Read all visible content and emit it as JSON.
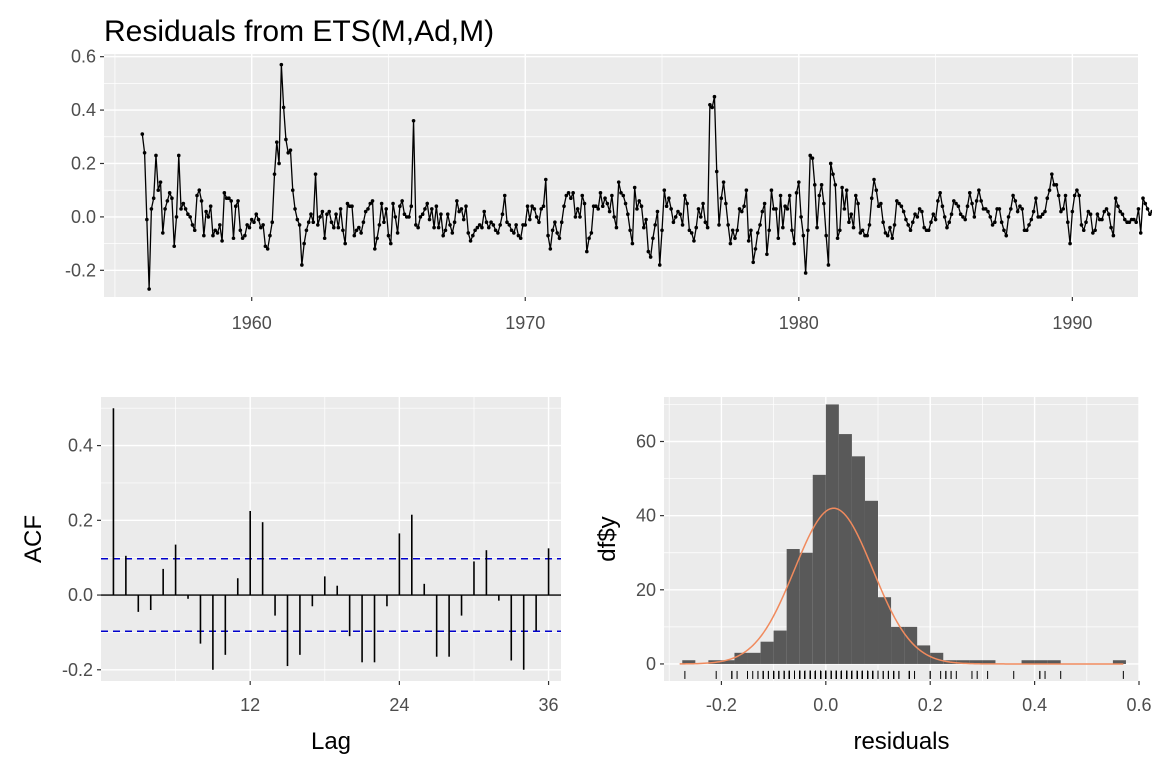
{
  "title": "Residuals from ETS(M,Ad,M)",
  "colors": {
    "panel": "#ebebeb",
    "grid_major": "#ffffff",
    "line": "#000000",
    "ci": "#0000cc",
    "bar": "#595959",
    "density": "#f08a5d"
  },
  "chart_data": [
    {
      "type": "line",
      "name": "residuals-time-series",
      "title": "Residuals from ETS(M,Ad,M)",
      "xlim": [
        1954.6,
        1992.4
      ],
      "ylim": [
        -0.3,
        0.61
      ],
      "xticks": [
        1960,
        1970,
        1980,
        1990
      ],
      "yticks": [
        -0.2,
        0.0,
        0.2,
        0.4,
        0.6
      ],
      "ytick_labels": [
        "-0.2",
        "0.0",
        "0.2",
        "0.4",
        "0.6"
      ],
      "start": 1956.0,
      "frequency": 12,
      "values": [
        0.31,
        0.24,
        -0.01,
        -0.27,
        0.03,
        0.07,
        0.23,
        0.1,
        0.13,
        -0.06,
        0.03,
        0.06,
        0.09,
        0.07,
        -0.11,
        0.0,
        0.23,
        0.03,
        0.05,
        0.03,
        0.01,
        0.0,
        -0.03,
        -0.05,
        0.08,
        0.1,
        0.06,
        -0.07,
        0.02,
        0.0,
        0.04,
        -0.07,
        -0.05,
        -0.06,
        -0.03,
        -0.09,
        0.09,
        0.07,
        0.07,
        0.06,
        -0.08,
        0.04,
        0.06,
        -0.05,
        -0.08,
        -0.07,
        -0.03,
        -0.04,
        -0.01,
        -0.02,
        0.01,
        -0.01,
        -0.04,
        -0.03,
        -0.11,
        -0.12,
        -0.07,
        -0.02,
        0.16,
        0.28,
        0.2,
        0.57,
        0.41,
        0.29,
        0.24,
        0.25,
        0.1,
        0.03,
        -0.01,
        -0.03,
        -0.18,
        -0.1,
        -0.05,
        -0.02,
        0.01,
        -0.02,
        0.16,
        -0.03,
        0.0,
        0.02,
        -0.08,
        0.01,
        0.02,
        -0.02,
        -0.04,
        0.01,
        -0.04,
        0.03,
        -0.05,
        -0.1,
        0.05,
        0.04,
        0.04,
        -0.07,
        -0.05,
        -0.04,
        -0.06,
        -0.02,
        0.02,
        0.03,
        0.05,
        0.06,
        -0.12,
        -0.08,
        -0.03,
        0.05,
        -0.02,
        0.03,
        -0.07,
        -0.1,
        0.05,
        0.0,
        -0.06,
        0.04,
        0.06,
        0.01,
        0.0,
        0.0,
        0.04,
        0.36,
        -0.03,
        -0.04,
        0.0,
        0.01,
        0.03,
        0.05,
        -0.01,
        0.03,
        -0.04,
        0.04,
        -0.04,
        0.01,
        -0.07,
        -0.05,
        0.01,
        -0.03,
        -0.06,
        -0.02,
        0.06,
        0.02,
        0.03,
        -0.01,
        0.04,
        -0.06,
        -0.09,
        -0.07,
        -0.05,
        -0.04,
        -0.03,
        -0.04,
        0.02,
        -0.02,
        -0.04,
        -0.02,
        -0.03,
        -0.05,
        -0.06,
        -0.03,
        0.01,
        0.08,
        -0.02,
        -0.03,
        -0.05,
        -0.06,
        -0.03,
        -0.07,
        -0.08,
        -0.03,
        -0.03,
        0.04,
        -0.01,
        0.04,
        0.03,
        0.0,
        -0.02,
        0.03,
        0.04,
        0.14,
        -0.07,
        -0.12,
        -0.05,
        -0.02,
        -0.06,
        -0.08,
        -0.02,
        0.04,
        0.08,
        0.09,
        0.07,
        0.09,
        0.0,
        0.03,
        0.0,
        0.08,
        0.05,
        -0.13,
        -0.08,
        -0.06,
        0.04,
        0.04,
        0.03,
        0.09,
        0.04,
        0.07,
        0.05,
        0.02,
        0.08,
        0.0,
        -0.04,
        0.13,
        0.09,
        0.08,
        0.05,
        0.01,
        -0.05,
        -0.1,
        0.11,
        0.03,
        0.06,
        0.04,
        -0.04,
        -0.01,
        -0.13,
        -0.15,
        -0.08,
        -0.03,
        0.02,
        -0.18,
        -0.05,
        0.1,
        0.04,
        0.07,
        0.03,
        -0.02,
        0.0,
        0.02,
        0.01,
        -0.03,
        0.08,
        0.05,
        -0.05,
        -0.06,
        -0.09,
        -0.04,
        0.03,
        0.0,
        0.05,
        -0.02,
        -0.04,
        0.42,
        0.41,
        0.45,
        0.17,
        -0.03,
        0.07,
        0.13,
        0.05,
        -0.03,
        -0.1,
        -0.05,
        -0.08,
        -0.05,
        0.03,
        0.02,
        0.04,
        0.1,
        -0.09,
        -0.05,
        -0.17,
        -0.12,
        -0.06,
        -0.03,
        0.02,
        0.05,
        -0.14,
        -0.05,
        0.1,
        0.03,
        0.03,
        -0.08,
        0.08,
        -0.04,
        0.04,
        0.03,
        0.08,
        -0.05,
        -0.1,
        0.09,
        0.13,
        0.0,
        -0.07,
        -0.21,
        -0.05,
        0.23,
        0.22,
        0.12,
        -0.04,
        0.08,
        0.12,
        0.05,
        -0.07,
        -0.18,
        0.2,
        0.16,
        0.12,
        -0.08,
        -0.05,
        0.11,
        0.03,
        0.1,
        -0.02,
        0.01,
        -0.04,
        0.08,
        0.05,
        -0.06,
        -0.05,
        -0.07,
        -0.07,
        -0.03,
        0.07,
        0.14,
        0.1,
        0.04,
        0.05,
        -0.02,
        -0.06,
        -0.07,
        -0.04,
        -0.08,
        -0.03,
        0.06,
        0.05,
        0.04,
        0.02,
        -0.01,
        -0.03,
        -0.05,
        -0.02,
        0.01,
        0.0,
        0.03,
        0.02,
        -0.04,
        -0.05,
        -0.05,
        -0.02,
        0.01,
        -0.01,
        0.06,
        0.09,
        0.04,
        0.0,
        -0.04,
        -0.02,
        0.01,
        0.06,
        0.05,
        0.04,
        0.01,
        0.0,
        -0.01,
        0.04,
        0.09,
        0.05,
        0.0,
        0.06,
        0.1,
        0.06,
        0.03,
        0.03,
        0.02,
        0.0,
        -0.03,
        -0.02,
        0.03,
        0.03,
        -0.02,
        -0.05,
        -0.07,
        0.0,
        0.03,
        0.08,
        0.06,
        0.02,
        0.04,
        0.03,
        -0.05,
        -0.05,
        -0.03,
        -0.01,
        0.02,
        0.07,
        0.0,
        0.0,
        0.01,
        0.02,
        0.07,
        0.1,
        0.16,
        0.12,
        0.12,
        0.08,
        0.02,
        0.03,
        0.08,
        -0.02,
        -0.1,
        0.02,
        0.08,
        0.1,
        0.08,
        -0.03,
        -0.05,
        -0.02,
        0.02,
        0.01,
        -0.06,
        -0.05,
        0.01,
        -0.01,
        -0.01,
        0.02,
        0.03,
        0.01,
        -0.04,
        -0.07,
        0.07,
        0.04,
        0.02,
        0.01,
        -0.01,
        -0.02,
        -0.02,
        -0.01,
        -0.01,
        -0.02,
        0.03,
        -0.06,
        0.07,
        0.05,
        0.03,
        0.01,
        0.02,
        0.0,
        -0.02,
        -0.01,
        -0.03,
        -0.04,
        -0.04,
        -0.02,
        0.03,
        0.07,
        0.03,
        0.01,
        0.0,
        -0.02,
        -0.02,
        -0.04,
        -0.02,
        -0.03,
        -0.01,
        -0.01,
        -0.03,
        0.02,
        0.05,
        0.05,
        0.03,
        0.02,
        0.0,
        -0.04,
        -0.03,
        -0.02,
        0.01,
        -0.01,
        -0.03,
        0.01,
        0.04,
        0.06,
        0.05,
        0.02,
        0.01,
        -0.03,
        -0.03,
        -0.01,
        -0.02,
        -0.02,
        -0.02,
        -0.02,
        0.01,
        0.05,
        0.06,
        0.06,
        0.03,
        0.02,
        0.0,
        -0.03,
        -0.06,
        -0.03,
        0.0,
        0.03,
        0.02,
        0.02,
        0.04,
        0.06,
        0.04,
        -0.01,
        0.01,
        0.0,
        -0.04,
        -0.07,
        -0.04,
        -0.05,
        -0.02,
        -0.06,
        -0.05,
        -0.03,
        0.0,
        0.04,
        0.05,
        0.02,
        0.01,
        0.0,
        -0.01,
        -0.01,
        -0.01,
        -0.02,
        -0.01,
        -0.07,
        0.0,
        0.01,
        0.05,
        0.07,
        0.07,
        0.08,
        0.09
      ]
    },
    {
      "type": "bar",
      "name": "acf",
      "xlabel": "Lag",
      "ylabel": "ACF",
      "xlim": [
        0.0,
        37.0
      ],
      "ylim": [
        -0.23,
        0.53
      ],
      "xticks": [
        12,
        24,
        36
      ],
      "yticks": [
        -0.2,
        0.0,
        0.2,
        0.4
      ],
      "ytick_labels": [
        "-0.2",
        "0.0",
        "0.2",
        "0.4"
      ],
      "ci": 0.097,
      "lags": [
        1,
        2,
        3,
        4,
        5,
        6,
        7,
        8,
        9,
        10,
        11,
        12,
        13,
        14,
        15,
        16,
        17,
        18,
        19,
        20,
        21,
        22,
        23,
        24,
        25,
        26,
        27,
        28,
        29,
        30,
        31,
        32,
        33,
        34,
        35,
        36
      ],
      "values": [
        0.5,
        0.105,
        -0.045,
        -0.04,
        0.07,
        0.135,
        -0.01,
        -0.13,
        -0.2,
        -0.16,
        0.045,
        0.225,
        0.195,
        -0.055,
        -0.19,
        -0.16,
        -0.03,
        0.05,
        0.025,
        -0.11,
        -0.18,
        -0.18,
        -0.03,
        0.165,
        0.215,
        0.03,
        -0.165,
        -0.165,
        -0.055,
        0.09,
        0.12,
        -0.015,
        -0.175,
        -0.2,
        -0.095,
        0.125
      ]
    },
    {
      "type": "bar",
      "name": "histogram",
      "xlabel": "residuals",
      "ylabel": "df$y",
      "xlim": [
        -0.31,
        0.6
      ],
      "ylim": [
        -4.6,
        72
      ],
      "xticks": [
        -0.2,
        0.0,
        0.2,
        0.4,
        0.6
      ],
      "xtick_labels": [
        "-0.2",
        "0.0",
        "0.2",
        "0.4",
        "0.6"
      ],
      "yticks": [
        0,
        20,
        40,
        60
      ],
      "ytick_labels": [
        "0",
        "20",
        "40",
        "60"
      ],
      "bin_width": 0.025,
      "bin_starts": [
        -0.275,
        -0.25,
        -0.225,
        -0.2,
        -0.175,
        -0.15,
        -0.125,
        -0.1,
        -0.075,
        -0.05,
        -0.025,
        0.0,
        0.025,
        0.05,
        0.075,
        0.1,
        0.125,
        0.15,
        0.175,
        0.2,
        0.225,
        0.25,
        0.275,
        0.3,
        0.325,
        0.35,
        0.375,
        0.4,
        0.425,
        0.45,
        0.475,
        0.5,
        0.525,
        0.55
      ],
      "counts": [
        1,
        0,
        1,
        1,
        3,
        3,
        6,
        9,
        31,
        30,
        51,
        70,
        62,
        56,
        44,
        18,
        10,
        10,
        5,
        3,
        1,
        1,
        1,
        1,
        0,
        0,
        1,
        1,
        1,
        0,
        0,
        0,
        0,
        1
      ],
      "density_peak": 42,
      "density_mean": 0.015,
      "density_sd": 0.075
    }
  ]
}
